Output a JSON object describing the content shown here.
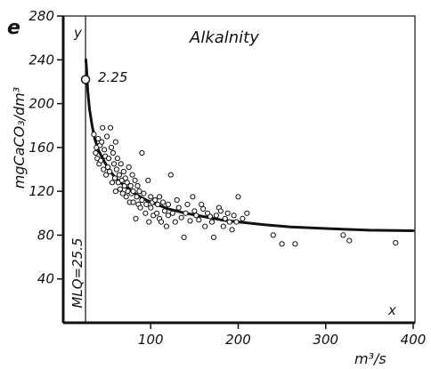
{
  "chart_data": {
    "type": "scatter",
    "panel_letter": "e",
    "title": "Alkalnity",
    "xlabel": "m³/s",
    "ylabel": "mgCaCO₃/dm³",
    "x_axis_end_label": "x",
    "y_axis_end_label": "y",
    "xlim": [
      0,
      400
    ],
    "ylim": [
      0,
      280
    ],
    "x_ticks": [
      100,
      200,
      300,
      400
    ],
    "y_ticks": [
      40,
      80,
      120,
      160,
      200,
      240,
      280
    ],
    "grid": false,
    "mlq_line": {
      "x": 25.5,
      "label": "MLQ=25.5"
    },
    "marker_point": {
      "x": 25.5,
      "y": 222,
      "label": "2.25"
    },
    "fit_curve": {
      "x": [
        26,
        27,
        28,
        30,
        33,
        36,
        40,
        45,
        50,
        55,
        60,
        70,
        80,
        90,
        100,
        120,
        140,
        160,
        180,
        200,
        230,
        260,
        300,
        350,
        400
      ],
      "y": [
        240,
        228,
        212,
        195,
        180,
        168,
        158,
        150,
        143,
        137,
        132,
        125,
        119,
        114,
        110,
        104,
        100,
        97,
        94,
        92,
        89.5,
        87.5,
        86,
        84.5,
        84
      ]
    },
    "series": [
      {
        "x": [
          35,
          37,
          38,
          39,
          40,
          41,
          42,
          43,
          44,
          45,
          46,
          47,
          48,
          49,
          50,
          51,
          52,
          53,
          54,
          55,
          56,
          57,
          58,
          59,
          60,
          60,
          61,
          62,
          63,
          64,
          65,
          66,
          67,
          68,
          69,
          70,
          71,
          72,
          73,
          74,
          75,
          76,
          77,
          78,
          79,
          80,
          80,
          82,
          83,
          84,
          85,
          86,
          87,
          88,
          90,
          90,
          92,
          94,
          95,
          97,
          98,
          100,
          100,
          102,
          103,
          105,
          107,
          108,
          110,
          110,
          112,
          114,
          116,
          118,
          120,
          120,
          123,
          125,
          128,
          130,
          132,
          135,
          138,
          140,
          142,
          145,
          148,
          150,
          152,
          155,
          158,
          160,
          162,
          165,
          168,
          170,
          172,
          175,
          178,
          180,
          183,
          185,
          188,
          190,
          193,
          195,
          198,
          200,
          205,
          210,
          240,
          250,
          265,
          320,
          327,
          380
        ],
        "y": [
          172,
          155,
          160,
          150,
          168,
          145,
          162,
          148,
          165,
          178,
          140,
          158,
          152,
          135,
          170,
          142,
          150,
          138,
          178,
          160,
          128,
          155,
          145,
          132,
          165,
          120,
          140,
          150,
          128,
          135,
          122,
          145,
          130,
          118,
          138,
          125,
          132,
          115,
          128,
          120,
          142,
          110,
          125,
          118,
          135,
          120,
          110,
          130,
          95,
          115,
          125,
          108,
          120,
          105,
          155,
          112,
          118,
          100,
          108,
          130,
          92,
          115,
          105,
          110,
          98,
          112,
          100,
          108,
          95,
          115,
          92,
          110,
          102,
          88,
          108,
          98,
          135,
          100,
          92,
          112,
          105,
          96,
          78,
          100,
          108,
          93,
          115,
          102,
          98,
          94,
          108,
          104,
          88,
          100,
          97,
          92,
          78,
          98,
          105,
          102,
          88,
          95,
          100,
          92,
          85,
          98,
          92,
          115,
          95,
          100,
          80,
          72,
          72,
          80,
          75,
          73
        ]
      }
    ]
  }
}
